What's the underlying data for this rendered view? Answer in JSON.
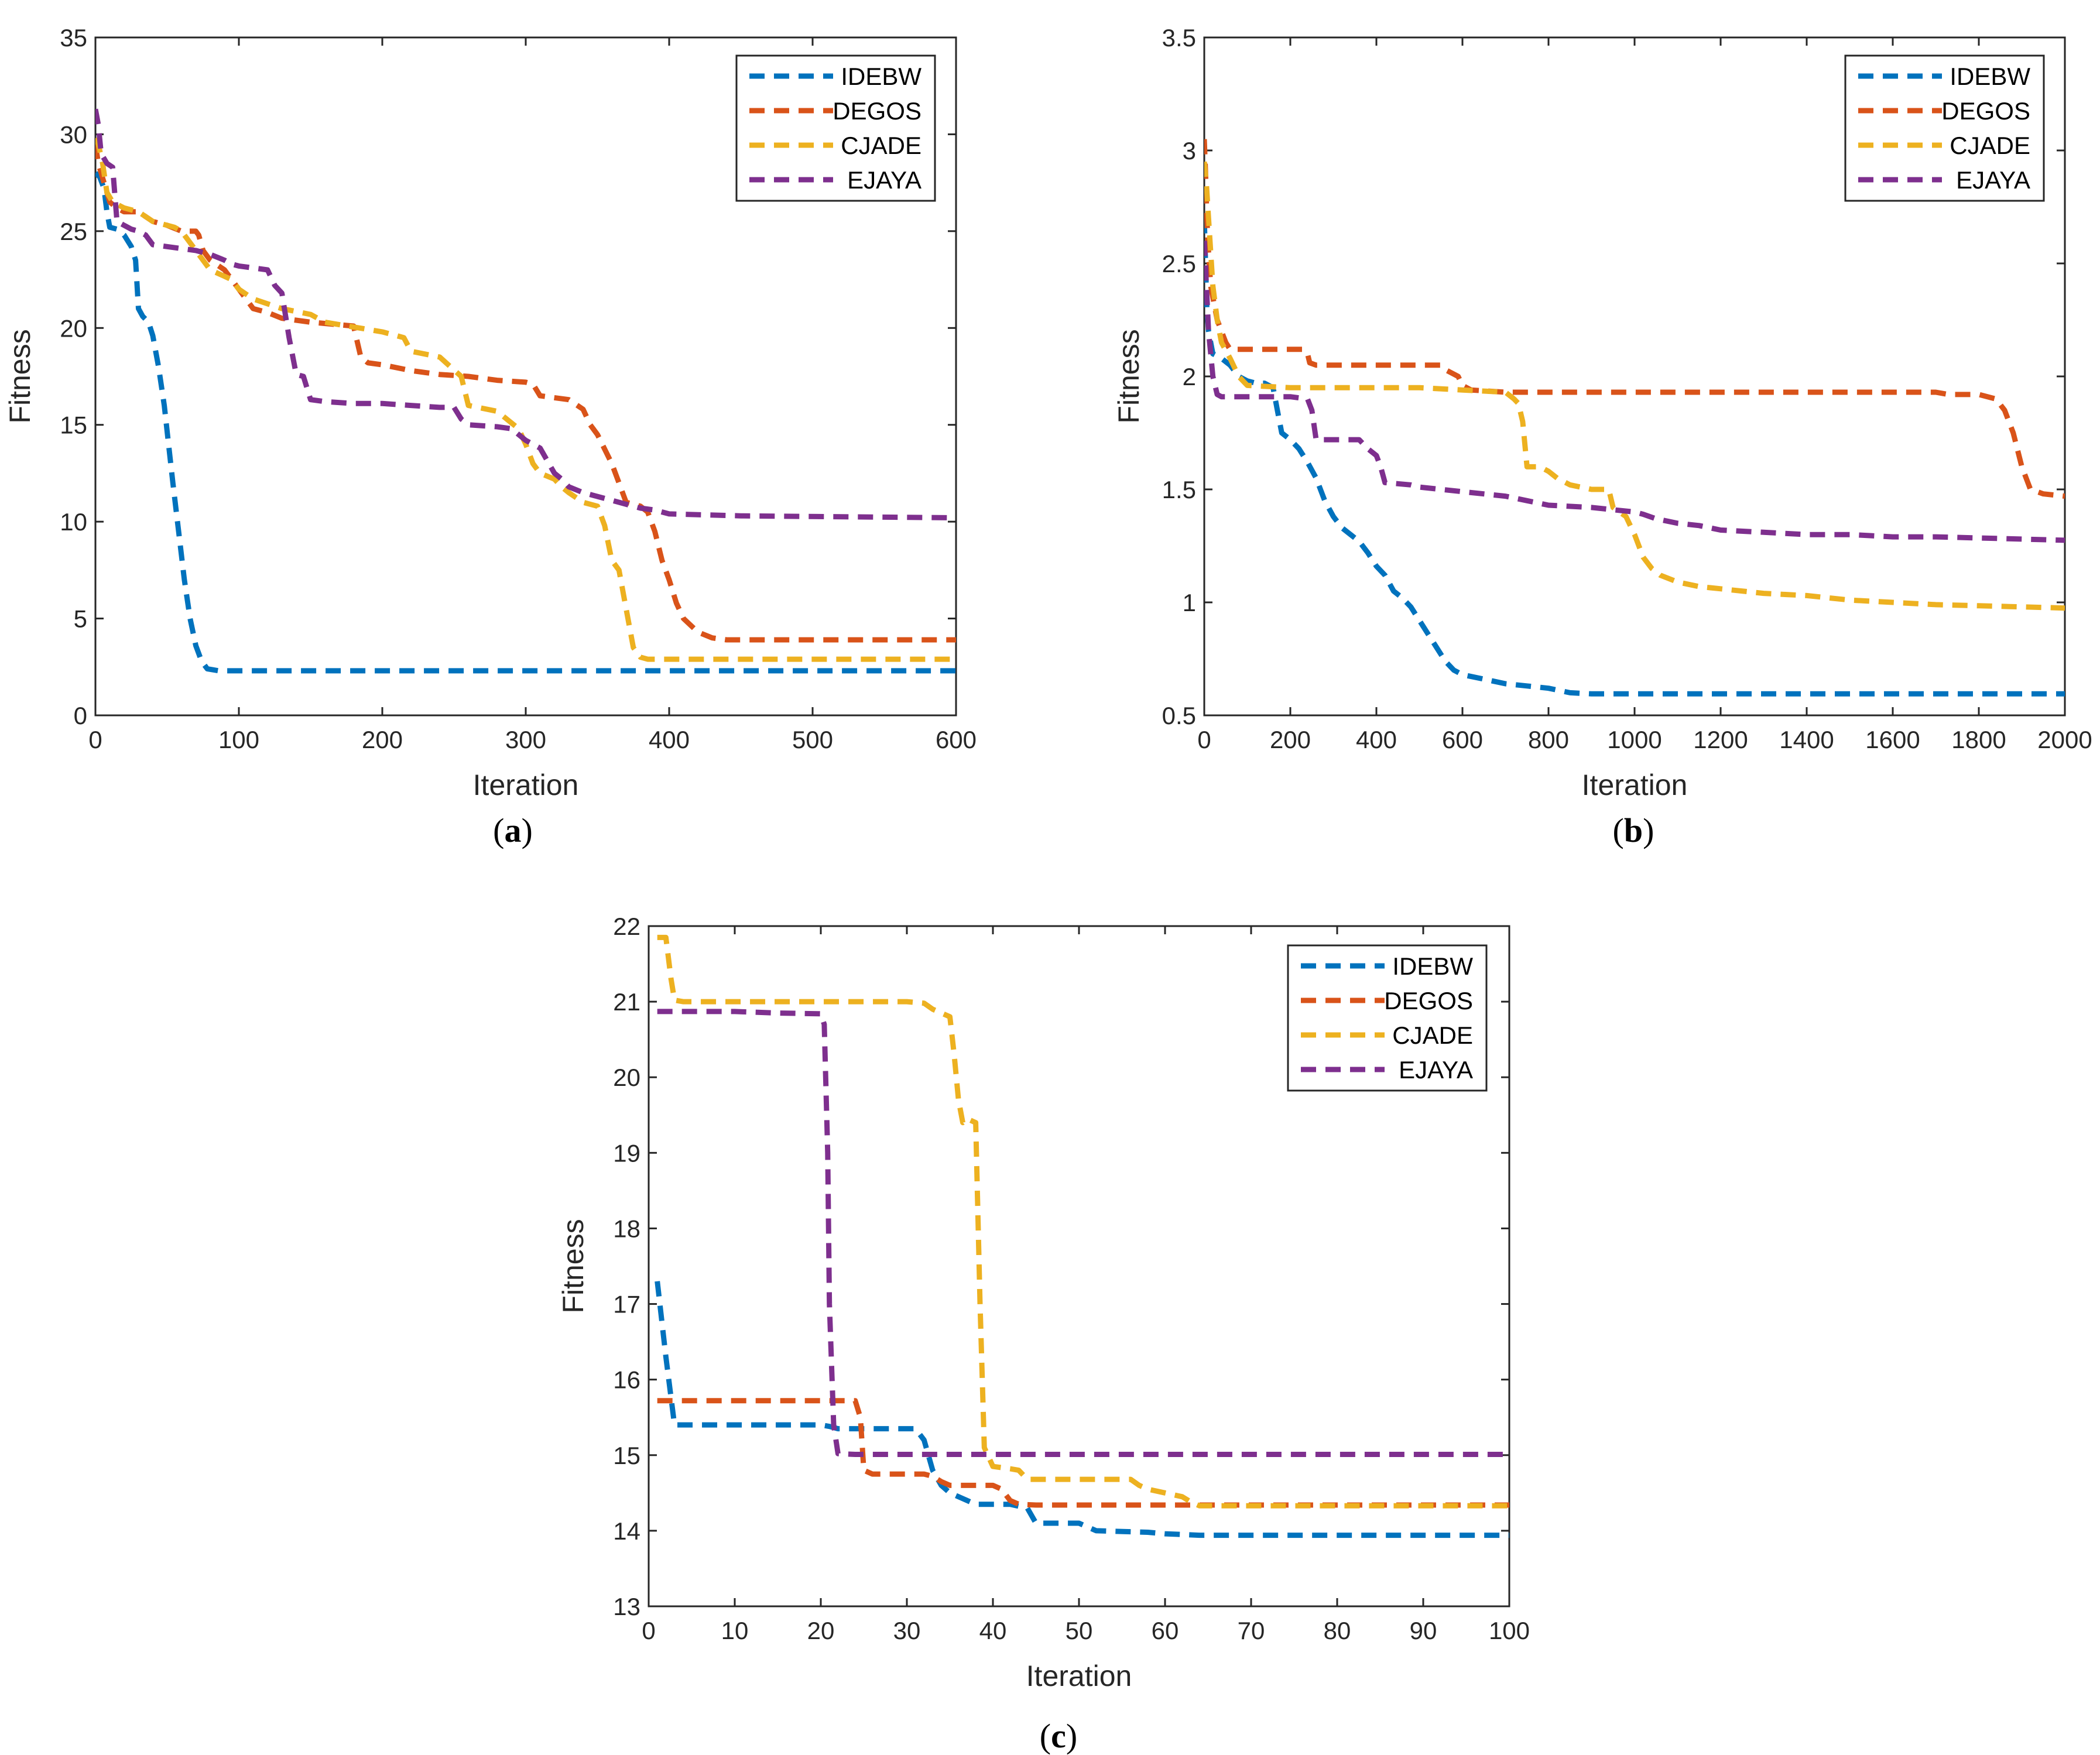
{
  "colors": {
    "IDEBW": "#0072BD",
    "DEGOS": "#D95319",
    "CJADE": "#EDB120",
    "EJAYA": "#7E2F8E"
  },
  "chart_data": [
    {
      "type": "line",
      "panel": "a",
      "panel_label": {
        "open": "(",
        "letter": "a",
        "close": ")"
      },
      "xlabel": "Iteration",
      "ylabel": "Fitness",
      "xlim": [
        0,
        600
      ],
      "ylim": [
        0,
        35
      ],
      "xticks": [
        0,
        100,
        200,
        300,
        400,
        500,
        600
      ],
      "yticks": [
        0,
        5,
        10,
        15,
        20,
        25,
        30,
        35
      ],
      "legend": [
        "IDEBW",
        "DEGOS",
        "CJADE",
        "EJAYA"
      ],
      "legend_position": "top-right",
      "series": [
        {
          "name": "IDEBW",
          "x": [
            0,
            3,
            6,
            8,
            10,
            15,
            20,
            25,
            28,
            30,
            33,
            37,
            40,
            44,
            48,
            51,
            54,
            58,
            62,
            66,
            70,
            74,
            78,
            82,
            86,
            90,
            100,
            600
          ],
          "y": [
            28,
            27.8,
            27.2,
            26,
            25.2,
            25.1,
            24.8,
            24.2,
            23.5,
            21,
            20.6,
            20.3,
            19.6,
            18,
            16,
            14,
            12,
            9.5,
            7,
            5,
            3.6,
            2.8,
            2.4,
            2.35,
            2.3,
            2.3,
            2.3,
            2.3
          ]
        },
        {
          "name": "DEGOS",
          "x": [
            0,
            2,
            4,
            6,
            10,
            15,
            20,
            30,
            40,
            50,
            60,
            70,
            72,
            75,
            80,
            90,
            95,
            100,
            105,
            110,
            120,
            130,
            150,
            180,
            185,
            190,
            200,
            220,
            230,
            240,
            260,
            280,
            300,
            305,
            310,
            320,
            330,
            340,
            345,
            350,
            360,
            365,
            370,
            380,
            385,
            390,
            395,
            400,
            405,
            410,
            420,
            430,
            440,
            600
          ],
          "y": [
            29.5,
            28.5,
            28,
            27.5,
            26.5,
            26.2,
            26,
            26,
            25.5,
            25.3,
            25,
            25,
            24.8,
            24,
            23.5,
            23,
            22.5,
            22,
            21.5,
            21,
            20.8,
            20.5,
            20.3,
            20.1,
            18.5,
            18.2,
            18.1,
            17.8,
            17.7,
            17.6,
            17.5,
            17.3,
            17.2,
            17.1,
            16.5,
            16.4,
            16.3,
            15.8,
            15,
            14.5,
            13,
            12,
            11,
            10.8,
            10.5,
            9.5,
            8,
            7,
            5.8,
            5,
            4.3,
            4.0,
            3.9,
            3.9
          ]
        },
        {
          "name": "CJADE",
          "x": [
            0,
            2,
            5,
            8,
            12,
            20,
            30,
            40,
            55,
            60,
            70,
            80,
            95,
            100,
            110,
            130,
            150,
            160,
            200,
            215,
            220,
            240,
            255,
            260,
            280,
            295,
            300,
            305,
            310,
            320,
            325,
            330,
            340,
            350,
            355,
            360,
            365,
            370,
            375,
            380,
            385,
            390,
            395,
            600
          ],
          "y": [
            29.8,
            29.5,
            28.5,
            27,
            26.5,
            26.2,
            26,
            25.5,
            25.2,
            25,
            24,
            23,
            22.5,
            22,
            21.5,
            21,
            20.7,
            20.3,
            19.8,
            19.5,
            18.8,
            18.5,
            17.5,
            16,
            15.7,
            14.8,
            14,
            13,
            12.5,
            12.2,
            11.8,
            11.5,
            11,
            10.8,
            9.8,
            8,
            7.5,
            5.5,
            3.5,
            3.0,
            2.9,
            2.9,
            2.9,
            2.9
          ]
        },
        {
          "name": "EJAYA",
          "x": [
            0,
            2,
            4,
            8,
            12,
            15,
            20,
            25,
            30,
            35,
            40,
            50,
            60,
            70,
            80,
            90,
            95,
            100,
            110,
            120,
            125,
            130,
            135,
            140,
            145,
            150,
            160,
            180,
            200,
            220,
            240,
            250,
            255,
            260,
            280,
            290,
            295,
            300,
            310,
            320,
            325,
            330,
            340,
            350,
            360,
            370,
            380,
            390,
            400,
            450,
            600
          ],
          "y": [
            31.3,
            30.5,
            29,
            28.5,
            28.3,
            25.5,
            25.3,
            25.1,
            25,
            24.8,
            24.3,
            24.2,
            24.1,
            24,
            23.8,
            23.5,
            23.3,
            23.2,
            23.1,
            23,
            22.2,
            21.8,
            19.5,
            17.6,
            17.5,
            16.3,
            16.2,
            16.1,
            16.1,
            16,
            15.9,
            15.9,
            15.3,
            15,
            14.9,
            14.8,
            14.5,
            14.2,
            13.8,
            12.5,
            12.2,
            11.8,
            11.5,
            11.3,
            11.1,
            10.9,
            10.7,
            10.6,
            10.4,
            10.3,
            10.2
          ]
        }
      ]
    },
    {
      "type": "line",
      "panel": "b",
      "panel_label": {
        "open": "(",
        "letter": "b",
        "close": ")"
      },
      "xlabel": "Iteration",
      "ylabel": "Fitness",
      "xlim": [
        0,
        2000
      ],
      "ylim": [
        0.5,
        3.5
      ],
      "xticks": [
        0,
        200,
        400,
        600,
        800,
        1000,
        1200,
        1400,
        1600,
        1800,
        2000
      ],
      "yticks": [
        0.5,
        1,
        1.5,
        2,
        2.5,
        3,
        3.5
      ],
      "ytick_labels": [
        "0.5",
        "1",
        "1.5",
        "2",
        "2.5",
        "3",
        "3.5"
      ],
      "legend": [
        "IDEBW",
        "DEGOS",
        "CJADE",
        "EJAYA"
      ],
      "legend_position": "top-right",
      "series": [
        {
          "name": "IDEBW",
          "x": [
            0,
            3,
            6,
            10,
            15,
            20,
            40,
            60,
            80,
            100,
            120,
            140,
            160,
            170,
            180,
            200,
            220,
            240,
            260,
            280,
            300,
            320,
            340,
            360,
            380,
            400,
            420,
            440,
            460,
            480,
            500,
            520,
            540,
            560,
            580,
            600,
            650,
            700,
            750,
            800,
            850,
            900,
            1000,
            2000
          ],
          "y": [
            2.7,
            2.5,
            2.3,
            2.2,
            2.15,
            2.1,
            2.08,
            2.05,
            2.0,
            1.98,
            1.97,
            1.97,
            1.95,
            1.85,
            1.75,
            1.72,
            1.68,
            1.62,
            1.55,
            1.45,
            1.38,
            1.33,
            1.3,
            1.27,
            1.22,
            1.16,
            1.12,
            1.05,
            1.02,
            0.98,
            0.92,
            0.86,
            0.8,
            0.74,
            0.7,
            0.68,
            0.66,
            0.64,
            0.63,
            0.62,
            0.6,
            0.595,
            0.595,
            0.595
          ]
        },
        {
          "name": "DEGOS",
          "x": [
            0,
            3,
            6,
            10,
            15,
            20,
            25,
            30,
            40,
            50,
            60,
            80,
            100,
            120,
            150,
            200,
            230,
            240,
            245,
            260,
            300,
            400,
            500,
            550,
            560,
            590,
            600,
            620,
            700,
            800,
            1000,
            1200,
            1400,
            1600,
            1700,
            1730,
            1800,
            1840,
            1860,
            1880,
            1900,
            1920,
            1950,
            2000
          ],
          "y": [
            3.05,
            2.9,
            2.7,
            2.55,
            2.4,
            2.35,
            2.3,
            2.25,
            2.2,
            2.15,
            2.12,
            2.12,
            2.12,
            2.12,
            2.12,
            2.12,
            2.12,
            2.1,
            2.06,
            2.05,
            2.05,
            2.05,
            2.05,
            2.05,
            2.03,
            2.0,
            1.96,
            1.94,
            1.93,
            1.93,
            1.93,
            1.93,
            1.93,
            1.93,
            1.93,
            1.92,
            1.92,
            1.9,
            1.85,
            1.75,
            1.6,
            1.5,
            1.48,
            1.47
          ]
        },
        {
          "name": "CJADE",
          "x": [
            0,
            5,
            10,
            15,
            20,
            30,
            40,
            60,
            80,
            100,
            200,
            400,
            500,
            600,
            700,
            720,
            730,
            740,
            750,
            780,
            800,
            820,
            850,
            900,
            940,
            950,
            980,
            1000,
            1020,
            1040,
            1060,
            1100,
            1150,
            1200,
            1300,
            1400,
            1500,
            1600,
            1700,
            1800,
            1900,
            2000
          ],
          "y": [
            2.95,
            2.85,
            2.7,
            2.55,
            2.4,
            2.25,
            2.15,
            2.08,
            2.0,
            1.96,
            1.95,
            1.95,
            1.95,
            1.94,
            1.93,
            1.9,
            1.88,
            1.8,
            1.6,
            1.6,
            1.58,
            1.55,
            1.52,
            1.5,
            1.5,
            1.42,
            1.38,
            1.3,
            1.2,
            1.15,
            1.12,
            1.09,
            1.07,
            1.06,
            1.04,
            1.03,
            1.01,
            1.0,
            0.99,
            0.985,
            0.98,
            0.975
          ]
        },
        {
          "name": "EJAYA",
          "x": [
            0,
            5,
            10,
            15,
            20,
            30,
            40,
            100,
            200,
            240,
            250,
            260,
            300,
            360,
            380,
            400,
            410,
            420,
            480,
            500,
            600,
            700,
            750,
            800,
            900,
            1000,
            1020,
            1050,
            1100,
            1150,
            1200,
            1300,
            1400,
            1500,
            1600,
            1700,
            1800,
            1900,
            2000
          ],
          "y": [
            2.6,
            2.4,
            2.2,
            2.1,
            2.0,
            1.92,
            1.91,
            1.91,
            1.91,
            1.9,
            1.85,
            1.72,
            1.72,
            1.72,
            1.68,
            1.65,
            1.6,
            1.53,
            1.52,
            1.51,
            1.49,
            1.47,
            1.45,
            1.43,
            1.42,
            1.4,
            1.39,
            1.37,
            1.35,
            1.34,
            1.32,
            1.31,
            1.3,
            1.3,
            1.29,
            1.29,
            1.285,
            1.28,
            1.275
          ]
        }
      ]
    },
    {
      "type": "line",
      "panel": "c",
      "panel_label": {
        "open": "(",
        "letter": "c",
        "close": ")"
      },
      "xlabel": "Iteration",
      "ylabel": "Fitness",
      "xlim": [
        0,
        100
      ],
      "ylim": [
        13,
        22
      ],
      "xticks": [
        0,
        10,
        20,
        30,
        40,
        50,
        60,
        70,
        80,
        90,
        100
      ],
      "yticks": [
        13,
        14,
        15,
        16,
        17,
        18,
        19,
        20,
        21,
        22
      ],
      "legend": [
        "IDEBW",
        "DEGOS",
        "CJADE",
        "EJAYA"
      ],
      "legend_position": "top-right",
      "series": [
        {
          "name": "IDEBW",
          "x": [
            1,
            2,
            3,
            20,
            21,
            22,
            31,
            32,
            33,
            34,
            35,
            36,
            37,
            38,
            42,
            44,
            45,
            46,
            50,
            51,
            52,
            58,
            60,
            62,
            64,
            66,
            70,
            80,
            90,
            100
          ],
          "y": [
            17.3,
            16.3,
            15.4,
            15.4,
            15.38,
            15.35,
            15.35,
            15.2,
            14.8,
            14.6,
            14.5,
            14.45,
            14.4,
            14.35,
            14.35,
            14.3,
            14.1,
            14.1,
            14.1,
            14.05,
            14.0,
            13.98,
            13.96,
            13.95,
            13.94,
            13.94,
            13.94,
            13.94,
            13.94,
            13.94
          ]
        },
        {
          "name": "DEGOS",
          "x": [
            1,
            24,
            24.6,
            25,
            26,
            32,
            33,
            34,
            35,
            36,
            40,
            41,
            42,
            43,
            45,
            60,
            80,
            100
          ],
          "y": [
            15.72,
            15.72,
            15.5,
            14.8,
            14.75,
            14.75,
            14.72,
            14.65,
            14.6,
            14.6,
            14.6,
            14.55,
            14.4,
            14.35,
            14.34,
            14.34,
            14.34,
            14.34
          ]
        },
        {
          "name": "CJADE",
          "x": [
            1,
            2,
            2.6,
            3,
            4,
            20,
            30,
            32,
            33,
            34,
            35,
            35.5,
            36,
            36.5,
            37,
            38,
            38.5,
            39,
            40,
            42,
            43,
            44,
            56,
            57,
            58,
            60,
            62,
            63,
            64,
            80,
            100
          ],
          "y": [
            21.85,
            21.85,
            21.3,
            21.02,
            21.0,
            21.0,
            21.0,
            20.98,
            20.9,
            20.85,
            20.8,
            20.3,
            19.7,
            19.4,
            19.45,
            19.4,
            17.0,
            15.1,
            14.85,
            14.82,
            14.8,
            14.68,
            14.68,
            14.6,
            14.55,
            14.5,
            14.45,
            14.38,
            14.33,
            14.33,
            14.33
          ]
        },
        {
          "name": "EJAYA",
          "x": [
            1,
            5,
            10,
            15,
            20,
            20.4,
            20.8,
            21,
            21.5,
            22,
            24,
            30,
            50,
            100
          ],
          "y": [
            20.87,
            20.87,
            20.87,
            20.85,
            20.84,
            20.7,
            19.0,
            17.0,
            15.4,
            15.02,
            15.01,
            15.01,
            15.01,
            15.01
          ]
        }
      ]
    }
  ]
}
